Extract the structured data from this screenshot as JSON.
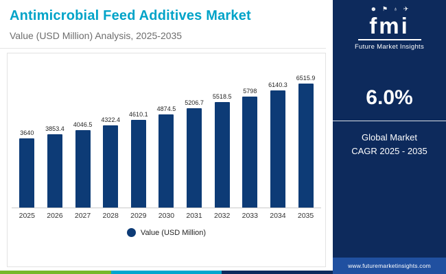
{
  "header": {
    "title": "Antimicrobial Feed Additives Market",
    "subtitle": "Value (USD Million) Analysis, 2025-2035"
  },
  "sidebar": {
    "logo": {
      "brand": "fmi",
      "brand_sub": "Future Market Insights",
      "icons": [
        {
          "name": "people-icon",
          "glyph": "☻"
        },
        {
          "name": "flag-icon",
          "glyph": "⚑"
        },
        {
          "name": "globe-icon",
          "glyph": "♁"
        },
        {
          "name": "plane-icon",
          "glyph": "✈"
        }
      ]
    },
    "cagr_value": "6.0%",
    "cagr_label_line1": "Global Market",
    "cagr_label_line2": "CAGR 2025 - 2035",
    "website": "www.futuremarketinsights.com"
  },
  "legend": {
    "label": "Value (USD Million)"
  },
  "colors": {
    "accent_teal": "#00a3c8",
    "bar_navy": "#0d3b76",
    "sidebar_navy": "#0d2a5c",
    "footer_blue": "#2050a0",
    "strip_green": "#76b82a",
    "strip_teal": "#00a6ce",
    "strip_navy": "#0d2a5c"
  },
  "chart_data": {
    "type": "bar",
    "title": "Antimicrobial Feed Additives Market",
    "subtitle": "Value (USD Million) Analysis, 2025-2035",
    "categories": [
      "2025",
      "2026",
      "2027",
      "2028",
      "2029",
      "2030",
      "2031",
      "2032",
      "2033",
      "2034",
      "2035"
    ],
    "values": [
      3640,
      3853.4,
      4046.5,
      4322.4,
      4610.1,
      4874.5,
      5206.7,
      5518.5,
      5798,
      6140.3,
      6515.9
    ],
    "xlabel": "",
    "ylabel": "Value (USD Million)",
    "ylim": [
      0,
      7000
    ],
    "grid": false,
    "legend_position": "bottom"
  }
}
